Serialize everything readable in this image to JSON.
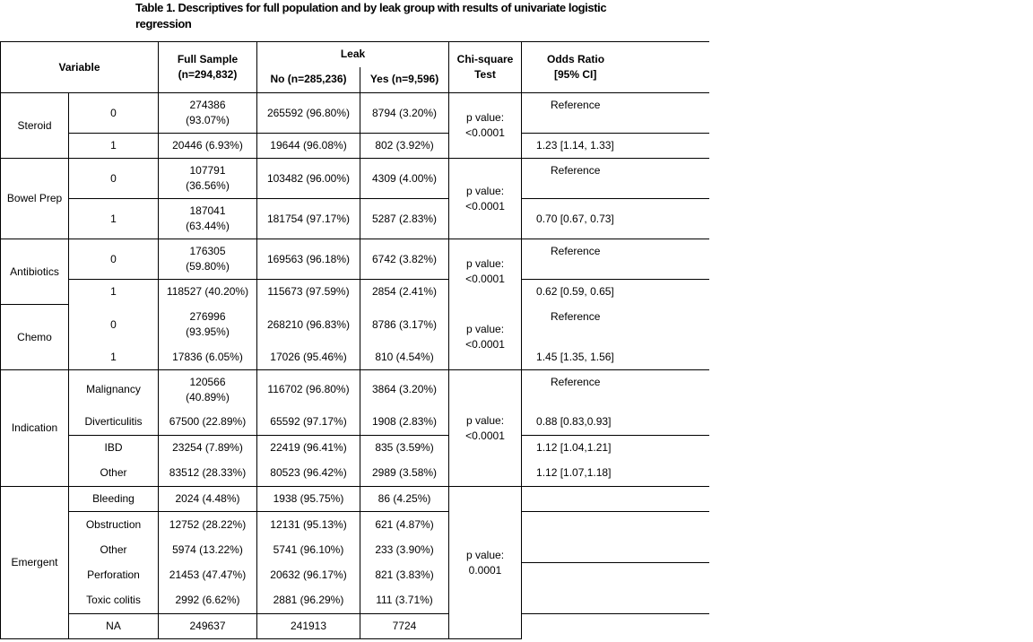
{
  "title": "Table 1. Descriptives for full population and by leak group with results of univariate logistic regression",
  "headers": {
    "variable": "Variable",
    "full_sample": "Full Sample",
    "full_sample_n": "(n=294,832)",
    "leak": "Leak",
    "no": "No (n=285,236)",
    "yes": "Yes (n=9,596)",
    "chi": "Chi-square",
    "chi2": "Test",
    "or": "Odds Ratio",
    "or2": "[95%  CI]"
  },
  "groups": {
    "steroid": {
      "name": "Steroid",
      "p": "p value:",
      "pv": "<0.0001",
      "rows": [
        {
          "level": "0",
          "full": "274386",
          "full2": "(93.07%)",
          "no": "265592 (96.80%)",
          "yes": "8794 (3.20%)",
          "or": "Reference"
        },
        {
          "level": "1",
          "full": "20446 (6.93%)",
          "no": "19644 (96.08%)",
          "yes": "802 (3.92%)",
          "or": "1.23 [1.14, 1.33]"
        }
      ]
    },
    "bowel": {
      "name": "Bowel Prep",
      "p": "p value:",
      "pv": "<0.0001",
      "rows": [
        {
          "level": "0",
          "full": "107791",
          "full2": "(36.56%)",
          "no": "103482 (96.00%)",
          "yes": "4309 (4.00%)",
          "or": "Reference"
        },
        {
          "level": "1",
          "full": "187041",
          "full2": "(63.44%)",
          "no": "181754 (97.17%)",
          "yes": "5287 (2.83%)",
          "or": "0.70 [0.67, 0.73]"
        }
      ]
    },
    "antibiotics": {
      "name": "Antibiotics",
      "p": "p value:",
      "pv": "<0.0001",
      "rows": [
        {
          "level": "0",
          "full": "176305",
          "full2": "(59.80%)",
          "no": "169563 (96.18%)",
          "yes": "6742 (3.82%)",
          "or": "Reference"
        },
        {
          "level": "1",
          "full": "118527 (40.20%)",
          "no": "115673 (97.59%)",
          "yes": "2854 (2.41%)",
          "or": "0.62 [0.59, 0.65]"
        }
      ]
    },
    "chemo": {
      "name": "Chemo",
      "p": "p value:",
      "pv": "<0.0001",
      "rows": [
        {
          "level": "0",
          "full": "276996",
          "full2": "(93.95%)",
          "no": "268210 (96.83%)",
          "yes": "8786 (3.17%)",
          "or": "Reference"
        },
        {
          "level": "1",
          "full": "17836 (6.05%)",
          "no": "17026 (95.46%)",
          "yes": "810 (4.54%)",
          "or": "1.45 [1.35, 1.56]"
        }
      ]
    },
    "indication": {
      "name": "Indication",
      "p": "p value:",
      "pv": "<0.0001",
      "rows": [
        {
          "level": "Malignancy",
          "full": "120566",
          "full2": "(40.89%)",
          "no": "116702 (96.80%)",
          "yes": "3864 (3.20%)",
          "or": "Reference"
        },
        {
          "level": "Diverticulitis",
          "full": "67500 (22.89%)",
          "no": "65592 (97.17%)",
          "yes": "1908 (2.83%)",
          "or": "0.88 [0.83,0.93]"
        },
        {
          "level": "IBD",
          "full": "23254 (7.89%)",
          "no": "22419 (96.41%)",
          "yes": "835 (3.59%)",
          "or": "1.12 [1.04,1.21]"
        },
        {
          "level": "Other",
          "full": "83512 (28.33%)",
          "no": "80523 (96.42%)",
          "yes": "2989 (3.58%)",
          "or": "1.12 [1.07,1.18]"
        }
      ]
    },
    "emergent": {
      "name": "Emergent",
      "p": "p value:",
      "pv": "0.0001",
      "rows": [
        {
          "level": "Bleeding",
          "full": "2024 (4.48%)",
          "no": "1938 (95.75%)",
          "yes": "86 (4.25%)"
        },
        {
          "level": "Obstruction",
          "full": "12752 (28.22%)",
          "no": "12131 (95.13%)",
          "yes": "621 (4.87%)"
        },
        {
          "level": "Other",
          "full": "5974 (13.22%)",
          "no": "5741 (96.10%)",
          "yes": "233 (3.90%)"
        },
        {
          "level": "Perforation",
          "full": "21453 (47.47%)",
          "no": "20632 (96.17%)",
          "yes": "821 (3.83%)"
        },
        {
          "level": "Toxic colitis",
          "full": "2992 (6.62%)",
          "no": "2881 (96.29%)",
          "yes": "111 (3.71%)"
        },
        {
          "level": "NA",
          "full": "249637",
          "no": "241913",
          "yes": "7724"
        }
      ]
    }
  }
}
